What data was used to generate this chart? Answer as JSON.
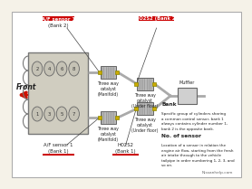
{
  "bg_color": "#f5f2e8",
  "white_bg": "#ffffff",
  "labels": {
    "af_sensor1_bank2": "A/F sensor 1\n(Bank 2)",
    "af_sensor1_bank1": "A/F sensor 1\n(Bank 1)",
    "ho2s2_bank2": "HO2S2 (Bank 2)",
    "ho2s2_bank1": "HO2S2\n(Bank 1)",
    "front": "Front",
    "twc_manifold_upper": "Three way\ncatalyst\n(Manifold)",
    "twc_manifold_lower": "Three way\ncatalyst\n(Manifold)",
    "twc_underfloor_upper": "Three way\ncatalyst\n(Under floor)",
    "twc_underfloor_lower": "Three way\ncatalyst\n(Under floor)",
    "muffler": "Muffler",
    "bank_title": "Bank",
    "bank_desc": "Specific group of cylinders sharing\na common control sensor, bank 1\nalways contains cylinder number 1,\nbank 2 is the opposite bank.",
    "no_sensor_title": "No. of sensor",
    "no_sensor_desc": "Location of a sensor in relation the\nengine air flow, starting from the fresh\nair intake through to the vehicle\ntailpipe in order numbering 1, 2, 3, and\nso on.",
    "nissan_help": "Nissanhelp.com"
  },
  "red_bar": "#cc0000",
  "arrow_color": "#cc1100",
  "sensor_color": "#ccaa00",
  "pipe_color": "#aaaaaa",
  "engine_fill": "#d0cdc0",
  "engine_edge": "#777777",
  "catalyst_fill": "#b8b8b8",
  "text_dark": "#222222",
  "underline_red": "#cc0000"
}
